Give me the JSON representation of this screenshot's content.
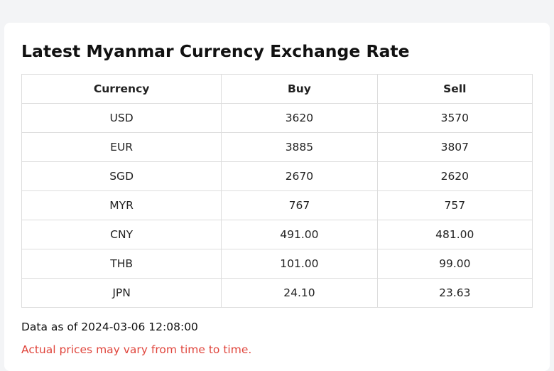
{
  "page": {
    "title": "Latest Myanmar Currency Exchange Rate"
  },
  "table": {
    "headers": {
      "currency": "Currency",
      "buy": "Buy",
      "sell": "Sell"
    },
    "rows": [
      {
        "currency": "USD",
        "buy": "3620",
        "sell": "3570"
      },
      {
        "currency": "EUR",
        "buy": "3885",
        "sell": "3807"
      },
      {
        "currency": "SGD",
        "buy": "2670",
        "sell": "2620"
      },
      {
        "currency": "MYR",
        "buy": "767",
        "sell": "757"
      },
      {
        "currency": "CNY",
        "buy": "491.00",
        "sell": "481.00"
      },
      {
        "currency": "THB",
        "buy": "101.00",
        "sell": "99.00"
      },
      {
        "currency": "JPN",
        "buy": "24.10",
        "sell": "23.63"
      }
    ]
  },
  "footer": {
    "timestamp": "Data as of 2024-03-06 12:08:00",
    "notice": "Actual prices may vary from time to time."
  },
  "colors": {
    "notice": "#e0453c",
    "page_background": "#f3f4f6",
    "card_background": "#ffffff",
    "table_border": "#dddddd"
  }
}
